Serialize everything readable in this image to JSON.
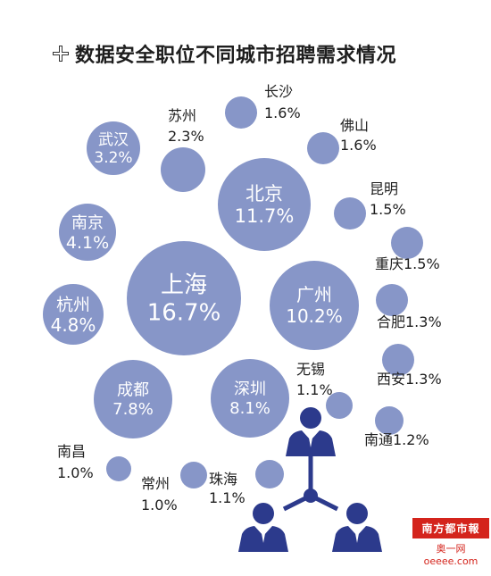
{
  "chart_data": {
    "type": "bubble",
    "title": "数据安全职位不同城市招聘需求情况",
    "unit": "%",
    "points": [
      {
        "city": "上海",
        "value": 16.7,
        "label_inside": true
      },
      {
        "city": "北京",
        "value": 11.7,
        "label_inside": true
      },
      {
        "city": "广州",
        "value": 10.2,
        "label_inside": true
      },
      {
        "city": "深圳",
        "value": 8.1,
        "label_inside": true
      },
      {
        "city": "成都",
        "value": 7.8,
        "label_inside": true
      },
      {
        "city": "杭州",
        "value": 4.8,
        "label_inside": true
      },
      {
        "city": "南京",
        "value": 4.1,
        "label_inside": true
      },
      {
        "city": "武汉",
        "value": 3.2,
        "label_inside": true
      },
      {
        "city": "苏州",
        "value": 2.3,
        "label_inside": false
      },
      {
        "city": "长沙",
        "value": 1.6,
        "label_inside": false
      },
      {
        "city": "佛山",
        "value": 1.6,
        "label_inside": false
      },
      {
        "city": "昆明",
        "value": 1.5,
        "label_inside": false
      },
      {
        "city": "重庆",
        "value": 1.5,
        "label_inside": false
      },
      {
        "city": "合肥",
        "value": 1.3,
        "label_inside": false
      },
      {
        "city": "西安",
        "value": 1.3,
        "label_inside": false
      },
      {
        "city": "南通",
        "value": 1.2,
        "label_inside": false
      },
      {
        "city": "无锡",
        "value": 1.1,
        "label_inside": false
      },
      {
        "city": "珠海",
        "value": 1.1,
        "label_inside": false
      },
      {
        "city": "常州",
        "value": 1.0,
        "label_inside": false
      },
      {
        "city": "南昌",
        "value": 1.0,
        "label_inside": false
      }
    ]
  },
  "colors": {
    "bubble": "#8796c8",
    "bubble_text": "#ffffff",
    "label_text": "#1e1e1e",
    "people_icon": "#2c3a8c",
    "brand_red": "#d4241c"
  },
  "decoration": {
    "title_icon": "plus-cross-icon",
    "illustration": "people-network-icon"
  },
  "watermark": {
    "brand": "南方都市報",
    "site": "奥一网oeeee.com"
  }
}
